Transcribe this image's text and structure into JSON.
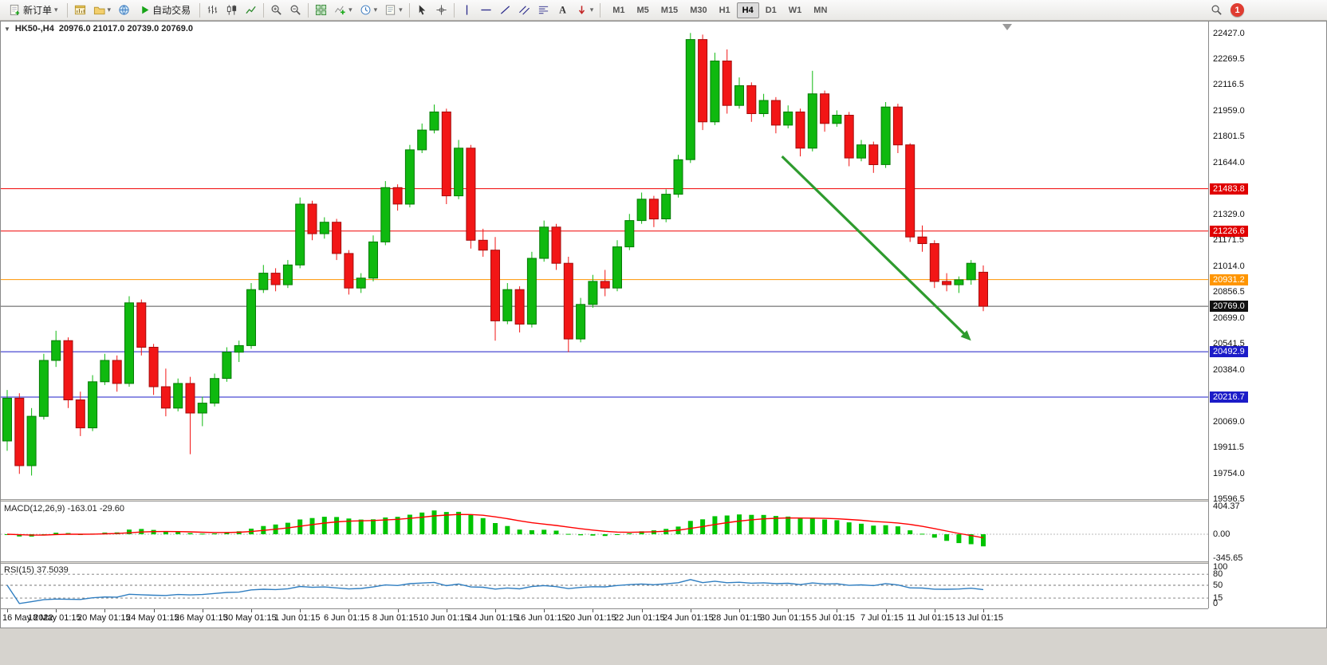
{
  "toolbar": {
    "new_order_label": "新订单",
    "auto_trading_label": "自动交易",
    "timeframes": [
      "M1",
      "M5",
      "M15",
      "M30",
      "H1",
      "H4",
      "D1",
      "W1",
      "MN"
    ],
    "active_timeframe": "H4",
    "notification_badge": "1"
  },
  "chart": {
    "symbol_label": "HK50-,H4",
    "ohlc_text": "20976.0 21017.0 20739.0 20769.0",
    "macd_label": "MACD(12,26,9) -163.01 -29.60",
    "rsi_label": "RSI(15) 37.5039"
  },
  "chart_data": {
    "type": "candlestick",
    "symbol": "HK50-",
    "timeframe": "H4",
    "current_ohlc": {
      "open": 20976.0,
      "high": 21017.0,
      "low": 20739.0,
      "close": 20769.0
    },
    "y_range": [
      19596.5,
      22427.0
    ],
    "scale_ticks": [
      22427.0,
      22269.5,
      22116.5,
      21959.0,
      21801.5,
      21644.0,
      21329.0,
      21171.5,
      21014.0,
      20856.5,
      20699.0,
      20541.5,
      20384.0,
      20069.0,
      19911.5,
      19754.0,
      19596.5
    ],
    "price_tags": [
      {
        "price": 21483.8,
        "bg": "#e00000"
      },
      {
        "price": 21226.6,
        "bg": "#e00000"
      },
      {
        "price": 20931.2,
        "bg": "#ff9500"
      },
      {
        "price": 20769.0,
        "bg": "#111111"
      },
      {
        "price": 20492.9,
        "bg": "#1c1cc8"
      },
      {
        "price": 20216.7,
        "bg": "#1c1cc8"
      }
    ],
    "hlines": [
      {
        "price": 21483.8,
        "color": "#f00000"
      },
      {
        "price": 21226.6,
        "color": "#f00000"
      },
      {
        "price": 20931.2,
        "color": "#ff9500"
      },
      {
        "price": 20769.0,
        "color": "#555555"
      },
      {
        "price": 20492.9,
        "color": "#1c1cc8"
      },
      {
        "price": 20216.7,
        "color": "#1c1cc8"
      }
    ],
    "arrow": {
      "from": {
        "index": 63.5,
        "price": 21680
      },
      "to": {
        "index": 79,
        "price": 20560
      },
      "color": "#2e9b2e"
    },
    "candles": [
      [
        19950,
        20260,
        19890,
        20210
      ],
      [
        20210,
        20240,
        19750,
        19800
      ],
      [
        19800,
        20150,
        19740,
        20100
      ],
      [
        20100,
        20480,
        20080,
        20440
      ],
      [
        20440,
        20620,
        20400,
        20560
      ],
      [
        20560,
        20580,
        20150,
        20200
      ],
      [
        20200,
        20250,
        19980,
        20030
      ],
      [
        20030,
        20350,
        20010,
        20310
      ],
      [
        20310,
        20480,
        20290,
        20440
      ],
      [
        20440,
        20470,
        20250,
        20300
      ],
      [
        20300,
        20830,
        20280,
        20790
      ],
      [
        20790,
        20810,
        20470,
        20520
      ],
      [
        20520,
        20540,
        20230,
        20280
      ],
      [
        20280,
        20390,
        20100,
        20150
      ],
      [
        20150,
        20330,
        20130,
        20300
      ],
      [
        20300,
        20340,
        19870,
        20120
      ],
      [
        20120,
        20220,
        20040,
        20180
      ],
      [
        20180,
        20360,
        20160,
        20330
      ],
      [
        20330,
        20520,
        20310,
        20490
      ],
      [
        20490,
        20560,
        20430,
        20530
      ],
      [
        20530,
        20910,
        20510,
        20870
      ],
      [
        20870,
        21020,
        20850,
        20970
      ],
      [
        20970,
        21000,
        20860,
        20900
      ],
      [
        20900,
        21050,
        20880,
        21020
      ],
      [
        21020,
        21430,
        21000,
        21390
      ],
      [
        21390,
        21410,
        21170,
        21210
      ],
      [
        21210,
        21310,
        21180,
        21280
      ],
      [
        21280,
        21300,
        21050,
        21090
      ],
      [
        21090,
        21110,
        20840,
        20880
      ],
      [
        20880,
        20970,
        20850,
        20940
      ],
      [
        20940,
        21200,
        20920,
        21160
      ],
      [
        21160,
        21530,
        21140,
        21490
      ],
      [
        21490,
        21510,
        21350,
        21390
      ],
      [
        21390,
        21750,
        21370,
        21720
      ],
      [
        21720,
        21880,
        21700,
        21840
      ],
      [
        21840,
        21995,
        21820,
        21950
      ],
      [
        21950,
        21970,
        21390,
        21440
      ],
      [
        21440,
        21780,
        21420,
        21730
      ],
      [
        21730,
        21750,
        21120,
        21170
      ],
      [
        21170,
        21240,
        21070,
        21110
      ],
      [
        21110,
        21190,
        20560,
        20680
      ],
      [
        20680,
        20910,
        20660,
        20870
      ],
      [
        20870,
        20890,
        20610,
        20660
      ],
      [
        20660,
        21100,
        20640,
        21060
      ],
      [
        21060,
        21290,
        21040,
        21250
      ],
      [
        21250,
        21270,
        20990,
        21030
      ],
      [
        21030,
        21070,
        20490,
        20570
      ],
      [
        20570,
        20820,
        20550,
        20780
      ],
      [
        20780,
        20960,
        20760,
        20920
      ],
      [
        20920,
        20990,
        20830,
        20880
      ],
      [
        20880,
        21170,
        20860,
        21130
      ],
      [
        21130,
        21330,
        21110,
        21290
      ],
      [
        21290,
        21460,
        21270,
        21420
      ],
      [
        21420,
        21440,
        21250,
        21300
      ],
      [
        21300,
        21480,
        21280,
        21450
      ],
      [
        21450,
        21690,
        21430,
        21660
      ],
      [
        21660,
        22430,
        21640,
        22390
      ],
      [
        22390,
        22420,
        21840,
        21890
      ],
      [
        21890,
        22310,
        21870,
        22260
      ],
      [
        22260,
        22330,
        21940,
        21990
      ],
      [
        21990,
        22160,
        21970,
        22110
      ],
      [
        22110,
        22130,
        21890,
        21940
      ],
      [
        21940,
        22060,
        21920,
        22020
      ],
      [
        22020,
        22040,
        21820,
        21870
      ],
      [
        21870,
        21990,
        21850,
        21950
      ],
      [
        21950,
        21970,
        21680,
        21730
      ],
      [
        21730,
        22200,
        21710,
        22060
      ],
      [
        22060,
        22080,
        21830,
        21880
      ],
      [
        21880,
        21960,
        21860,
        21930
      ],
      [
        21930,
        21950,
        21620,
        21670
      ],
      [
        21670,
        21780,
        21650,
        21750
      ],
      [
        21750,
        21770,
        21580,
        21630
      ],
      [
        21630,
        22010,
        21610,
        21980
      ],
      [
        21980,
        22000,
        21700,
        21750
      ],
      [
        21750,
        21760,
        21160,
        21190
      ],
      [
        21190,
        21260,
        21100,
        21150
      ],
      [
        21150,
        21170,
        20880,
        20920
      ],
      [
        20920,
        20970,
        20860,
        20900
      ],
      [
        20900,
        20950,
        20850,
        20930
      ],
      [
        20930,
        21050,
        20900,
        21030
      ],
      [
        20976,
        21017,
        20739,
        20769
      ]
    ],
    "x_labels": [
      "16 May 2022",
      "18 May 01:15",
      "20 May 01:15",
      "24 May 01:15",
      "26 May 01:15",
      "30 May 01:15",
      "1 Jun 01:15",
      "6 Jun 01:15",
      "8 Jun 01:15",
      "10 Jun 01:15",
      "14 Jun 01:15",
      "16 Jun 01:15",
      "20 Jun 01:15",
      "22 Jun 01:15",
      "24 Jun 01:15",
      "28 Jun 01:15",
      "30 Jun 01:15",
      "5 Jul 01:15",
      "7 Jul 01:15",
      "11 Jul 01:15",
      "13 Jul 01:15"
    ],
    "x_label_step": 4,
    "macd": {
      "params": "12,26,9",
      "value": -163.01,
      "signal_value": -29.6,
      "scale": [
        "404.37",
        "0.00",
        "-345.65"
      ]
    },
    "rsi": {
      "period": 15,
      "value": 37.5039,
      "levels": [
        80,
        50,
        15
      ],
      "scale": [
        100,
        80,
        50,
        15,
        0
      ]
    },
    "colors": {
      "bull": "#0fb90f",
      "bull_border": "#067a06",
      "bear": "#f21616",
      "bear_border": "#a30c0c",
      "macd_hist": "#00c400",
      "macd_signal": "#ff0000",
      "rsi_line": "#2f7ec1",
      "arrow": "#2e9b2e"
    }
  }
}
